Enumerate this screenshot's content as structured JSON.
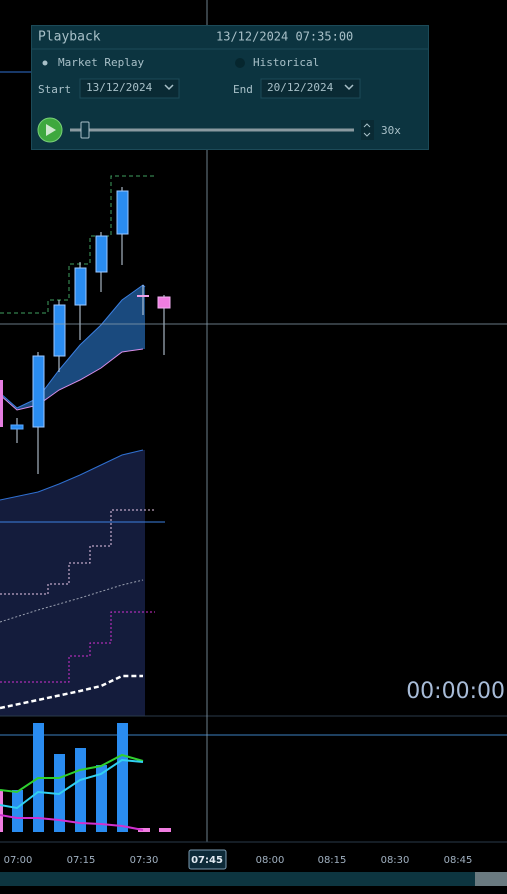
{
  "playback": {
    "title": "Playback",
    "datetime": "13/12/2024 07:35:00",
    "modes": [
      "Market Replay",
      "Historical"
    ],
    "start_label": "Start",
    "start_date": "13/12/2024",
    "end_label": "End",
    "end_date": "20/12/2024",
    "speed": "30x"
  },
  "chart": {
    "timer": "00:00:00",
    "time_labels": [
      "07:00",
      "07:15",
      "07:30",
      "08:00",
      "08:15",
      "08:30",
      "08:45"
    ],
    "crosshair_time": "07:45"
  }
}
